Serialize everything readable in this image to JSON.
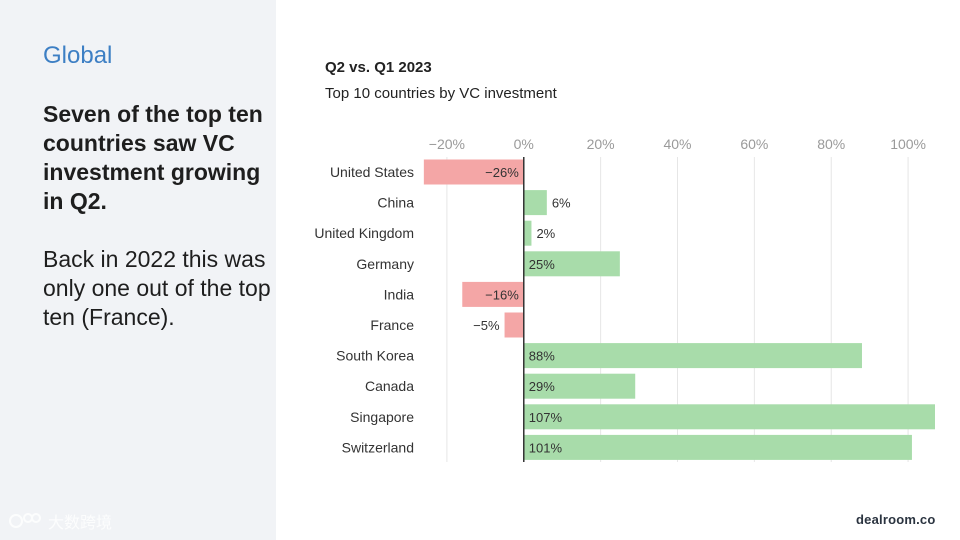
{
  "left": {
    "section_label": "Global",
    "headline": "Seven of the top ten countries saw VC investment growing in Q2.",
    "body": "Back in 2022 this was only one out of the top ten (France)."
  },
  "watermark": {
    "text": "大数跨境"
  },
  "brand": {
    "name": "dealroom.co"
  },
  "colors": {
    "positive": "#a8dcaa",
    "negative": "#f4a6a6",
    "grid": "#e6e6e6",
    "axis": "#333333",
    "tick_label": "#9a9a9a",
    "accent": "#3d7fc4"
  },
  "chart_data": {
    "type": "bar",
    "orientation": "horizontal",
    "subtitle": "Q2 vs. Q1 2023",
    "title": "Top 10 countries by VC investment",
    "categories": [
      "United States",
      "China",
      "United Kingdom",
      "Germany",
      "India",
      "France",
      "South Korea",
      "Canada",
      "Singapore",
      "Switzerland"
    ],
    "values": [
      -26,
      6,
      2,
      25,
      -16,
      -5,
      88,
      29,
      107,
      101
    ],
    "value_labels": [
      "−26%",
      "6%",
      "2%",
      "25%",
      "−16%",
      "−5%",
      "88%",
      "29%",
      "107%",
      "101%"
    ],
    "xlim": [
      -27,
      107
    ],
    "x_ticks": [
      -20,
      0,
      20,
      40,
      60,
      80,
      100
    ],
    "x_tick_labels": [
      "−20%",
      "0%",
      "20%",
      "40%",
      "60%",
      "80%",
      "100%"
    ],
    "xlabel": "",
    "ylabel": "",
    "grid": true
  }
}
